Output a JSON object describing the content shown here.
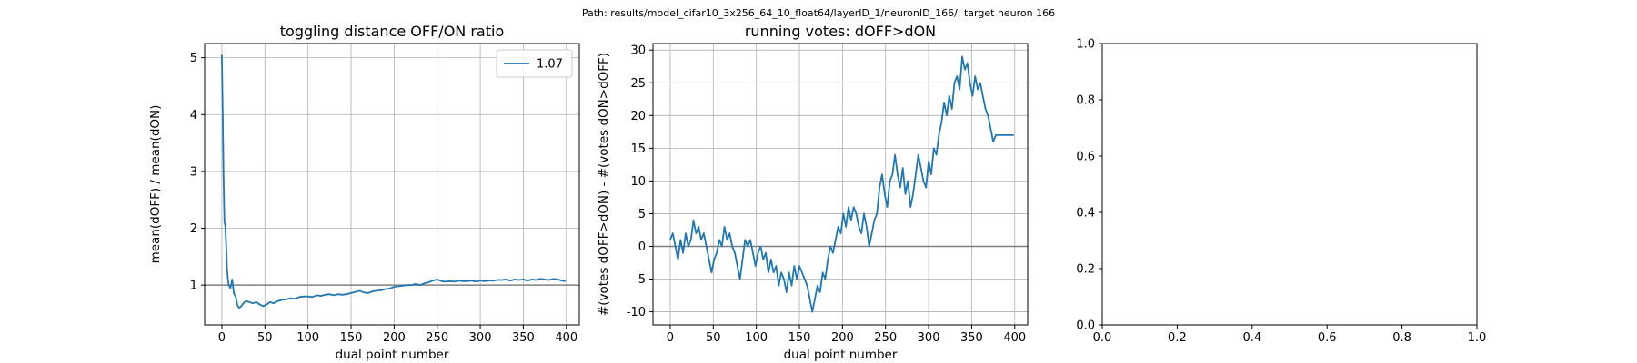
{
  "suptitle": "Path: results/model_cifar10_3x256_64_10_float64/layerID_1/neuronID_166/; target neuron 166",
  "chart_data": [
    {
      "type": "line",
      "title": "toggling distance OFF/ON ratio",
      "xlabel": "dual point number",
      "ylabel": "mean(dOFF) / mean(dON)",
      "xlim": [
        -20,
        415
      ],
      "ylim": [
        0.3,
        5.25
      ],
      "xticks": [
        0,
        50,
        100,
        150,
        200,
        250,
        300,
        350,
        400
      ],
      "yticks": [
        1,
        2,
        3,
        4,
        5
      ],
      "grid": true,
      "legend": "top-right",
      "hline": 1,
      "series": [
        {
          "name": "1.07",
          "color": "#1f77b4",
          "x": [
            0,
            1,
            2,
            3,
            4,
            5,
            6,
            7,
            8,
            10,
            12,
            14,
            16,
            18,
            20,
            22,
            25,
            28,
            32,
            36,
            40,
            44,
            48,
            52,
            56,
            60,
            65,
            70,
            75,
            80,
            85,
            90,
            95,
            100,
            105,
            110,
            115,
            120,
            125,
            130,
            135,
            140,
            145,
            150,
            155,
            160,
            165,
            170,
            175,
            180,
            185,
            190,
            195,
            200,
            205,
            210,
            215,
            220,
            225,
            230,
            235,
            240,
            245,
            250,
            255,
            260,
            265,
            270,
            275,
            280,
            285,
            290,
            295,
            300,
            305,
            310,
            315,
            320,
            325,
            330,
            335,
            340,
            345,
            350,
            355,
            360,
            365,
            370,
            375,
            380,
            385,
            390,
            395,
            399
          ],
          "y": [
            5.05,
            4.0,
            2.9,
            2.1,
            2.05,
            1.7,
            1.3,
            1.1,
            1.0,
            0.95,
            1.1,
            0.85,
            0.8,
            0.65,
            0.6,
            0.62,
            0.68,
            0.72,
            0.7,
            0.68,
            0.7,
            0.66,
            0.63,
            0.66,
            0.7,
            0.68,
            0.72,
            0.74,
            0.75,
            0.77,
            0.76,
            0.79,
            0.8,
            0.8,
            0.79,
            0.82,
            0.81,
            0.83,
            0.84,
            0.82,
            0.84,
            0.83,
            0.84,
            0.86,
            0.88,
            0.9,
            0.87,
            0.86,
            0.89,
            0.9,
            0.91,
            0.93,
            0.94,
            0.97,
            0.98,
            0.99,
            1.0,
            1.0,
            1.02,
            1.0,
            1.03,
            1.05,
            1.08,
            1.1,
            1.07,
            1.06,
            1.07,
            1.06,
            1.08,
            1.07,
            1.07,
            1.08,
            1.06,
            1.08,
            1.07,
            1.08,
            1.08,
            1.09,
            1.09,
            1.1,
            1.08,
            1.1,
            1.09,
            1.1,
            1.08,
            1.1,
            1.09,
            1.11,
            1.1,
            1.09,
            1.11,
            1.1,
            1.08,
            1.07
          ]
        }
      ]
    },
    {
      "type": "line",
      "title": "running votes: dOFF>dON",
      "xlabel": "dual point number",
      "ylabel": "#(votes dOFF>dON) - #(votes dON>dOFF)",
      "xlim": [
        -20,
        415
      ],
      "ylim": [
        -12,
        31
      ],
      "xticks": [
        0,
        50,
        100,
        150,
        200,
        250,
        300,
        350,
        400
      ],
      "yticks": [
        -10,
        -5,
        0,
        5,
        10,
        15,
        20,
        25,
        30
      ],
      "grid": true,
      "hline": 0,
      "series": [
        {
          "color": "#1f77b4",
          "x": [
            0,
            3,
            6,
            9,
            12,
            15,
            18,
            21,
            24,
            27,
            30,
            33,
            36,
            39,
            42,
            45,
            48,
            51,
            54,
            57,
            60,
            63,
            66,
            69,
            72,
            75,
            78,
            81,
            84,
            87,
            90,
            93,
            96,
            99,
            102,
            105,
            108,
            111,
            114,
            117,
            120,
            123,
            126,
            129,
            132,
            135,
            138,
            141,
            144,
            147,
            150,
            153,
            156,
            159,
            162,
            165,
            168,
            171,
            174,
            177,
            180,
            183,
            186,
            189,
            192,
            195,
            198,
            201,
            204,
            207,
            210,
            213,
            216,
            219,
            222,
            225,
            228,
            231,
            234,
            237,
            240,
            243,
            246,
            249,
            252,
            255,
            258,
            261,
            264,
            267,
            270,
            273,
            276,
            279,
            282,
            285,
            288,
            291,
            294,
            297,
            300,
            303,
            306,
            309,
            312,
            315,
            318,
            321,
            324,
            327,
            330,
            333,
            336,
            339,
            342,
            345,
            348,
            351,
            354,
            357,
            360,
            363,
            366,
            369,
            372,
            375,
            378,
            381,
            384,
            387,
            390,
            393,
            396,
            399
          ],
          "y": [
            1,
            2,
            0,
            -2,
            1,
            -1,
            2,
            0,
            1,
            4,
            2,
            3,
            1,
            2,
            0,
            -2,
            -4,
            -2,
            -1,
            1,
            0,
            3,
            1,
            2,
            0,
            -1,
            -3,
            -5,
            -2,
            1,
            0,
            1,
            -1,
            -3,
            -1,
            0,
            -2,
            -1,
            -4,
            -2,
            -4,
            -3,
            -6,
            -4,
            -5,
            -7,
            -4,
            -6,
            -3,
            -5,
            -3,
            -4,
            -5,
            -6,
            -8,
            -10,
            -8,
            -6,
            -7,
            -4,
            -5,
            -2,
            0,
            -1,
            1,
            3,
            2,
            5,
            3,
            6,
            4,
            6,
            5,
            3,
            2,
            5,
            3,
            0,
            2,
            4,
            5,
            9,
            11,
            8,
            6,
            10,
            11,
            14,
            11,
            9,
            12,
            8,
            10,
            6,
            8,
            11,
            14,
            12,
            10,
            9,
            13,
            11,
            15,
            14,
            17,
            19,
            22,
            20,
            23,
            21,
            25,
            26,
            24,
            29,
            27,
            28,
            25,
            23,
            26,
            24,
            25,
            23,
            21,
            20,
            18,
            16,
            17,
            17,
            17,
            17,
            17,
            17,
            17,
            17
          ]
        }
      ]
    },
    {
      "type": "line",
      "title": "",
      "xlabel": "",
      "ylabel": "",
      "xlim": [
        0,
        1
      ],
      "ylim": [
        0,
        1
      ],
      "xticks": [
        0.0,
        0.2,
        0.4,
        0.6,
        0.8,
        1.0
      ],
      "yticks": [
        0.0,
        0.2,
        0.4,
        0.6,
        0.8,
        1.0
      ],
      "grid": false,
      "series": []
    }
  ]
}
